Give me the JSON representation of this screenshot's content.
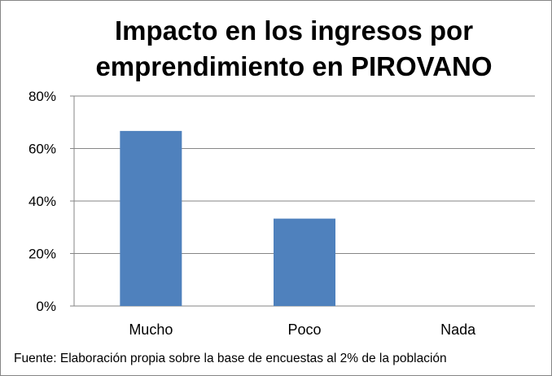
{
  "chart_data": {
    "type": "bar",
    "title_lines": [
      "Impacto en los ingresos por",
      "emprendimiento  en PIROVANO"
    ],
    "categories": [
      "Mucho",
      "Poco",
      "Nada"
    ],
    "values": [
      66.7,
      33.3,
      0
    ],
    "ylim": [
      0,
      80
    ],
    "yticks": [
      0,
      20,
      40,
      60,
      80
    ],
    "ytick_labels": [
      "0%",
      "20%",
      "40%",
      "60%",
      "80%"
    ],
    "grid": true,
    "legend": "none",
    "bar_color": "#4F81BD",
    "source": "Fuente: Elaboración propia sobre la base de encuestas al 2%  de la población"
  }
}
